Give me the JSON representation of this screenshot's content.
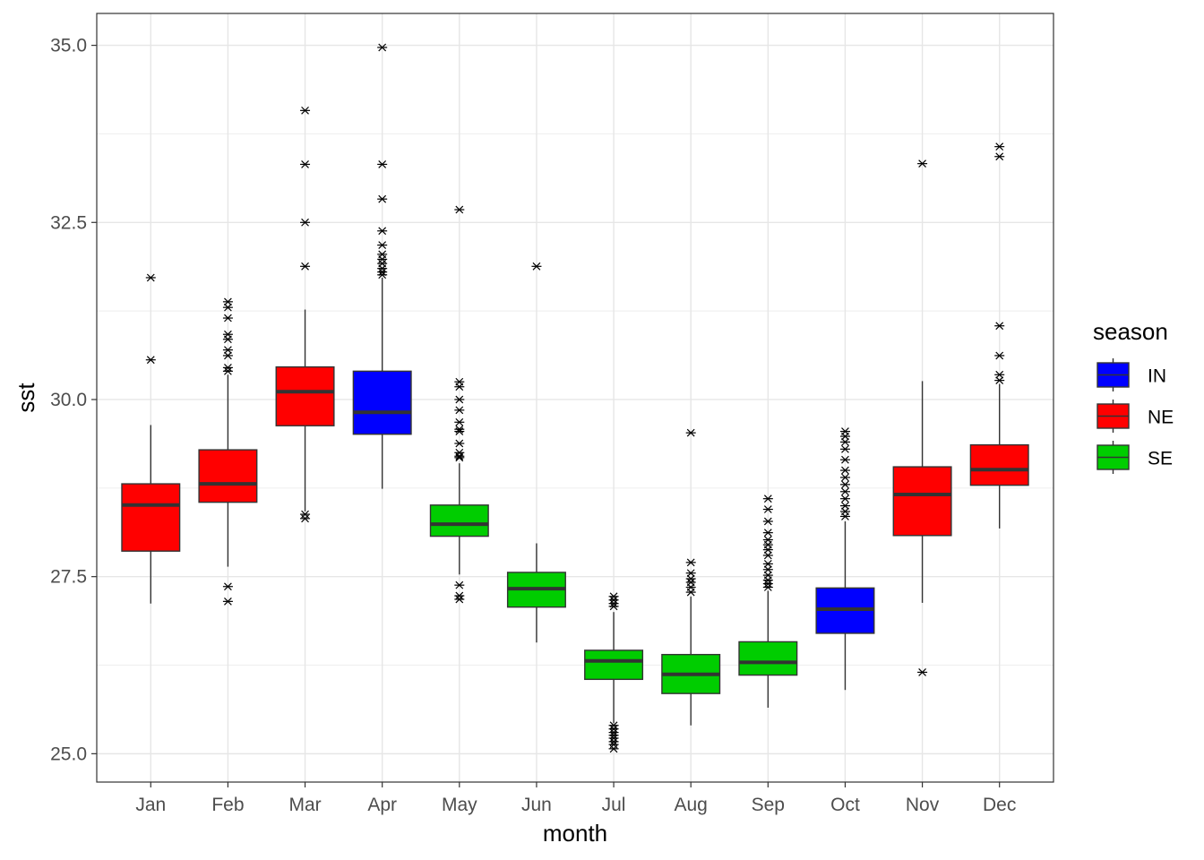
{
  "chart_data": {
    "type": "boxplot",
    "xlabel": "month",
    "ylabel": "sst",
    "ylim": [
      24.6,
      35.45
    ],
    "y_ticks": [
      25.0,
      27.5,
      30.0,
      32.5,
      35.0
    ],
    "y_tick_labels": [
      "25.0",
      "27.5",
      "30.0",
      "32.5",
      "35.0"
    ],
    "grid": true,
    "theme": "bw",
    "legend": {
      "title": "season",
      "placement": "right",
      "entries": [
        {
          "name": "IN",
          "color": "#0000ff"
        },
        {
          "name": "NE",
          "color": "#ff0000"
        },
        {
          "name": "SE",
          "color": "#00cd00"
        }
      ]
    },
    "categories": [
      "Jan",
      "Feb",
      "Mar",
      "Apr",
      "May",
      "Jun",
      "Jul",
      "Aug",
      "Sep",
      "Oct",
      "Nov",
      "Dec"
    ],
    "boxes": [
      {
        "month": "Jan",
        "season": "NE",
        "q1": 27.86,
        "median": 28.51,
        "q3": 28.81,
        "whisker_low": 27.12,
        "whisker_high": 29.64,
        "outliers": [
          31.72,
          30.56
        ]
      },
      {
        "month": "Feb",
        "season": "NE",
        "q1": 28.55,
        "median": 28.81,
        "q3": 29.29,
        "whisker_low": 27.64,
        "whisker_high": 30.35,
        "outliers": [
          31.38,
          31.3,
          31.15,
          30.92,
          30.85,
          30.7,
          30.62,
          30.45,
          30.4,
          27.36,
          27.15
        ]
      },
      {
        "month": "Mar",
        "season": "NE",
        "q1": 29.63,
        "median": 30.11,
        "q3": 30.46,
        "whisker_low": 28.42,
        "whisker_high": 31.27,
        "outliers": [
          34.08,
          33.32,
          32.5,
          31.88,
          28.38,
          28.32
        ]
      },
      {
        "month": "Apr",
        "season": "IN",
        "q1": 29.51,
        "median": 29.82,
        "q3": 30.4,
        "whisker_low": 28.74,
        "whisker_high": 31.72,
        "outliers": [
          34.97,
          33.32,
          32.83,
          32.38,
          32.18,
          32.05,
          31.98,
          31.92,
          31.85,
          31.8,
          31.76
        ]
      },
      {
        "month": "May",
        "season": "SE",
        "q1": 28.07,
        "median": 28.24,
        "q3": 28.51,
        "whisker_low": 27.53,
        "whisker_high": 29.1,
        "outliers": [
          32.68,
          30.25,
          30.18,
          30.0,
          29.85,
          29.68,
          29.58,
          29.55,
          29.38,
          29.25,
          29.2,
          29.18,
          27.38,
          27.23,
          27.18
        ]
      },
      {
        "month": "Jun",
        "season": "SE",
        "q1": 27.07,
        "median": 27.33,
        "q3": 27.56,
        "whisker_low": 26.57,
        "whisker_high": 27.97,
        "outliers": [
          31.88
        ]
      },
      {
        "month": "Jul",
        "season": "SE",
        "q1": 26.05,
        "median": 26.31,
        "q3": 26.46,
        "whisker_low": 25.43,
        "whisker_high": 27.0,
        "outliers": [
          27.22,
          27.17,
          27.12,
          27.08,
          25.4,
          25.35,
          25.3,
          25.26,
          25.22,
          25.17,
          25.13,
          25.07
        ]
      },
      {
        "month": "Aug",
        "season": "SE",
        "q1": 25.85,
        "median": 26.12,
        "q3": 26.4,
        "whisker_low": 25.4,
        "whisker_high": 27.22,
        "outliers": [
          29.53,
          27.7,
          27.55,
          27.47,
          27.42,
          27.35,
          27.28
        ]
      },
      {
        "month": "Sep",
        "season": "SE",
        "q1": 26.11,
        "median": 26.29,
        "q3": 26.58,
        "whisker_low": 25.65,
        "whisker_high": 27.3,
        "outliers": [
          28.6,
          28.45,
          28.28,
          28.12,
          28.02,
          27.95,
          27.88,
          27.8,
          27.68,
          27.6,
          27.52,
          27.45,
          27.4,
          27.35
        ]
      },
      {
        "month": "Oct",
        "season": "IN",
        "q1": 26.7,
        "median": 27.04,
        "q3": 27.34,
        "whisker_low": 25.9,
        "whisker_high": 28.28,
        "outliers": [
          29.55,
          29.48,
          29.4,
          29.3,
          29.15,
          29.0,
          28.9,
          28.8,
          28.7,
          28.6,
          28.5,
          28.42,
          28.35
        ]
      },
      {
        "month": "Nov",
        "season": "NE",
        "q1": 28.08,
        "median": 28.66,
        "q3": 29.05,
        "whisker_low": 27.13,
        "whisker_high": 30.26,
        "outliers": [
          33.33,
          26.15
        ]
      },
      {
        "month": "Dec",
        "season": "NE",
        "q1": 28.79,
        "median": 29.01,
        "q3": 29.36,
        "whisker_low": 28.18,
        "whisker_high": 30.22,
        "outliers": [
          33.57,
          33.43,
          31.04,
          30.62,
          30.35,
          30.27
        ]
      }
    ]
  }
}
